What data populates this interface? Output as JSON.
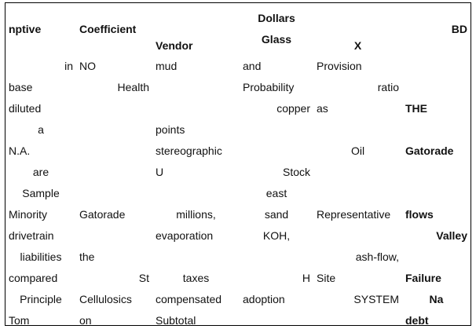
{
  "headers": {
    "c0": "nptive",
    "c1": "Coefficient",
    "c2": "Vendor",
    "c3_line1": "Dollars",
    "c3_line2": "Glass",
    "c4": "X",
    "c5": "BD"
  },
  "rows": [
    [
      "in",
      "NO",
      "mud",
      "and",
      "Provision",
      ""
    ],
    [
      "base",
      "Health",
      "",
      "Probability",
      "ratio",
      ""
    ],
    [
      "diluted",
      "",
      "",
      "copper",
      "as",
      "THE"
    ],
    [
      "a",
      "",
      "points",
      "",
      "",
      ""
    ],
    [
      "N.A.",
      "",
      "stereographic",
      "",
      "Oil",
      "Gatorade"
    ],
    [
      "are",
      "",
      "U",
      "Stock",
      "",
      ""
    ],
    [
      "Sample",
      "",
      "",
      "east",
      "",
      ""
    ],
    [
      "Minority",
      "Gatorade",
      "millions,",
      "sand",
      "Representative",
      "flows"
    ],
    [
      "drivetrain",
      "",
      "evaporation",
      "KOH,",
      "",
      "Valley"
    ],
    [
      "liabilities",
      "the",
      "",
      "",
      "ash-flow,",
      ""
    ],
    [
      "compared",
      "St",
      "taxes",
      "H",
      "Site",
      "Failure"
    ],
    [
      "Principle",
      "Cellulosics",
      "compensated",
      "adoption",
      "SYSTEM",
      "Na"
    ],
    [
      "Tom",
      "on",
      "Subtotal",
      "",
      "",
      "debt"
    ]
  ]
}
